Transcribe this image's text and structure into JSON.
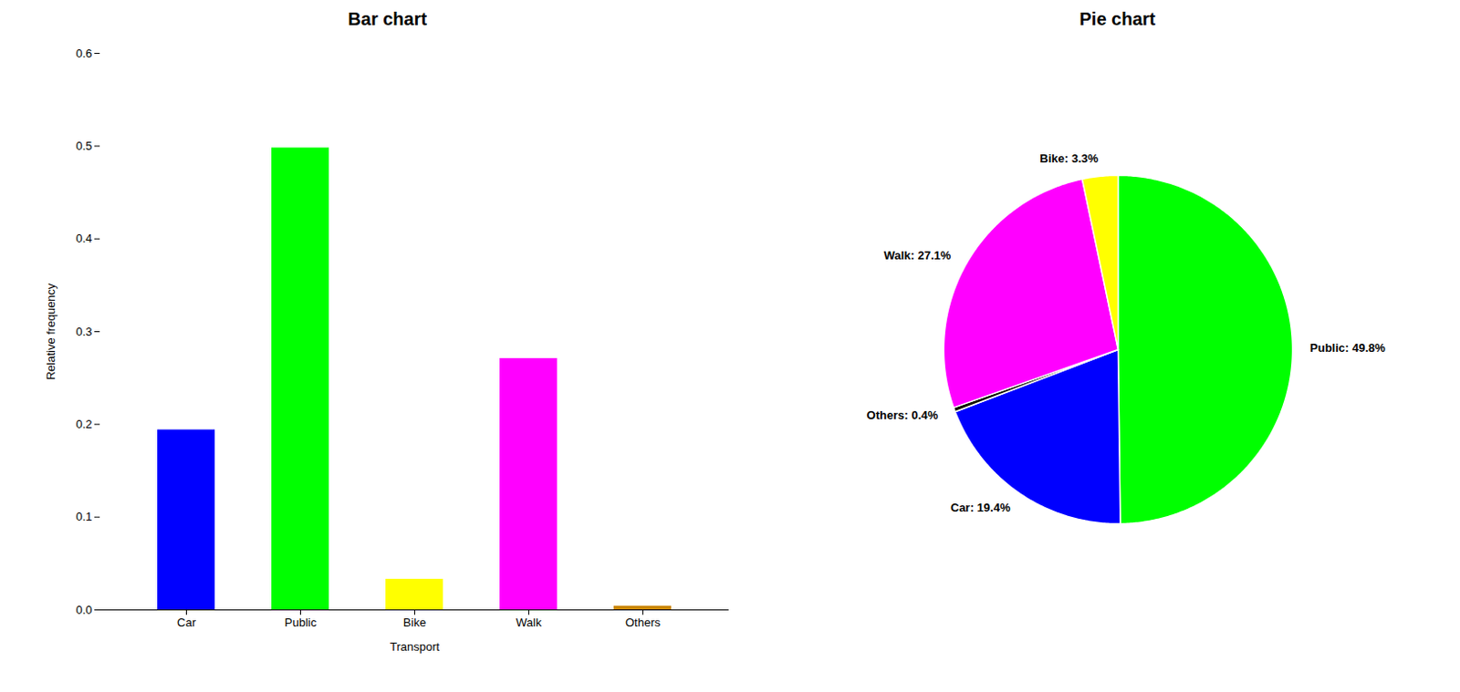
{
  "chart_data": [
    {
      "type": "bar",
      "title": "Bar chart",
      "categories": [
        "Car",
        "Public",
        "Bike",
        "Walk",
        "Others"
      ],
      "values": [
        0.194,
        0.498,
        0.033,
        0.271,
        0.004
      ],
      "colors": [
        "#0000ff",
        "#00ff00",
        "#ffff00",
        "#ff00ff",
        "#cc8800"
      ],
      "xlabel": "Transport",
      "ylabel": "Relative frequency",
      "ylim": [
        0,
        0.6
      ],
      "yticks": [
        {
          "value": 0.0,
          "label": "0.0"
        },
        0.1,
        0.2,
        0.3,
        0.4,
        0.5,
        0.6
      ],
      "grid": false
    },
    {
      "type": "pie",
      "title": "Pie chart",
      "values": [
        49.8,
        19.4,
        0.4,
        27.1,
        3.3
      ],
      "colors": [
        "#00ff00",
        "#0000ff",
        "#111100",
        "#ff00ff",
        "#ffff00"
      ],
      "value_labels": [
        "Public: 49.8%",
        "Car: 19.4%",
        "Others: 0.4%",
        "Walk: 27.1%",
        "Bike: 3.3%"
      ],
      "data_labels": true
    }
  ]
}
